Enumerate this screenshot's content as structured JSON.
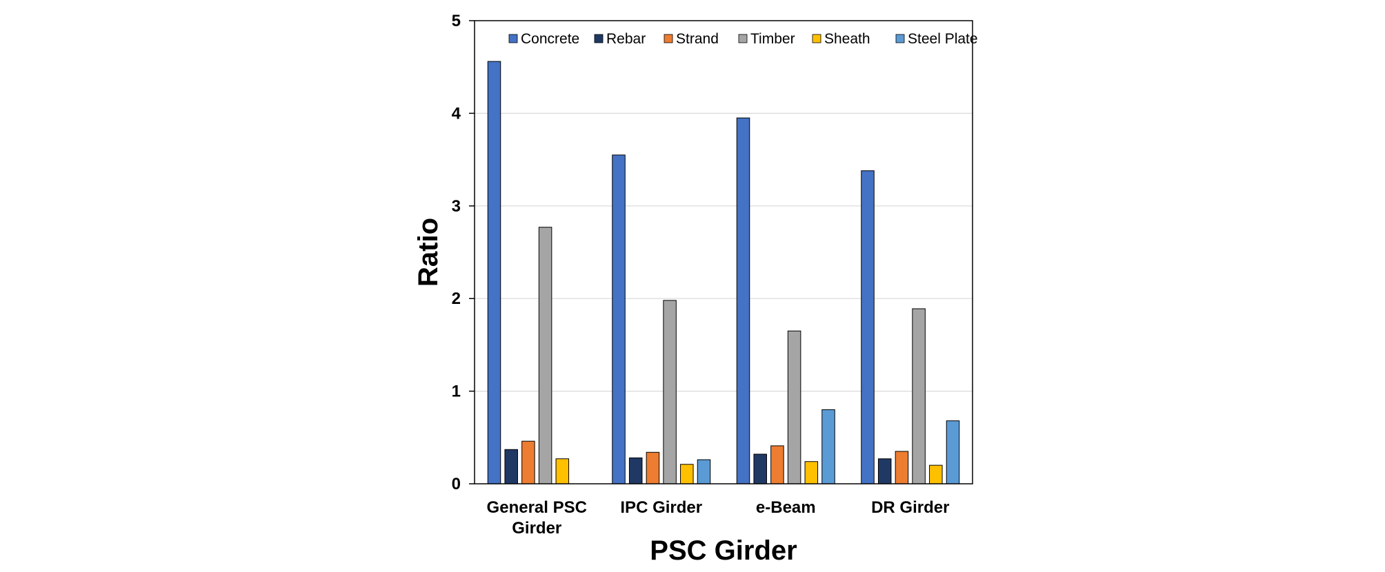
{
  "chart_data": {
    "type": "bar",
    "title": "",
    "xlabel": "PSC Girder",
    "ylabel": "Ratio",
    "ylim": [
      0,
      5
    ],
    "yticks": [
      "0",
      "1",
      "2",
      "3",
      "4",
      "5"
    ],
    "grid": true,
    "legend_position": "top-right",
    "categories": [
      [
        "General PSC",
        "Girder"
      ],
      [
        "IPC Girder"
      ],
      [
        "e-Beam"
      ],
      [
        "DR Girder"
      ]
    ],
    "series": [
      {
        "name": "Concrete",
        "color": "#4472C4",
        "values": [
          4.56,
          3.55,
          3.95,
          3.38
        ]
      },
      {
        "name": "Rebar",
        "color": "#203864",
        "values": [
          0.37,
          0.28,
          0.32,
          0.27
        ]
      },
      {
        "name": "Strand",
        "color": "#ED7D31",
        "values": [
          0.46,
          0.34,
          0.41,
          0.35
        ]
      },
      {
        "name": "Timber",
        "color": "#A5A5A5",
        "values": [
          2.77,
          1.98,
          1.65,
          1.89
        ]
      },
      {
        "name": "Sheath",
        "color": "#FFC000",
        "values": [
          0.27,
          0.21,
          0.24,
          0.2
        ]
      },
      {
        "name": "Steel Plate",
        "color": "#5B9BD5",
        "values": [
          0,
          0.26,
          0.8,
          0.68
        ]
      }
    ]
  }
}
